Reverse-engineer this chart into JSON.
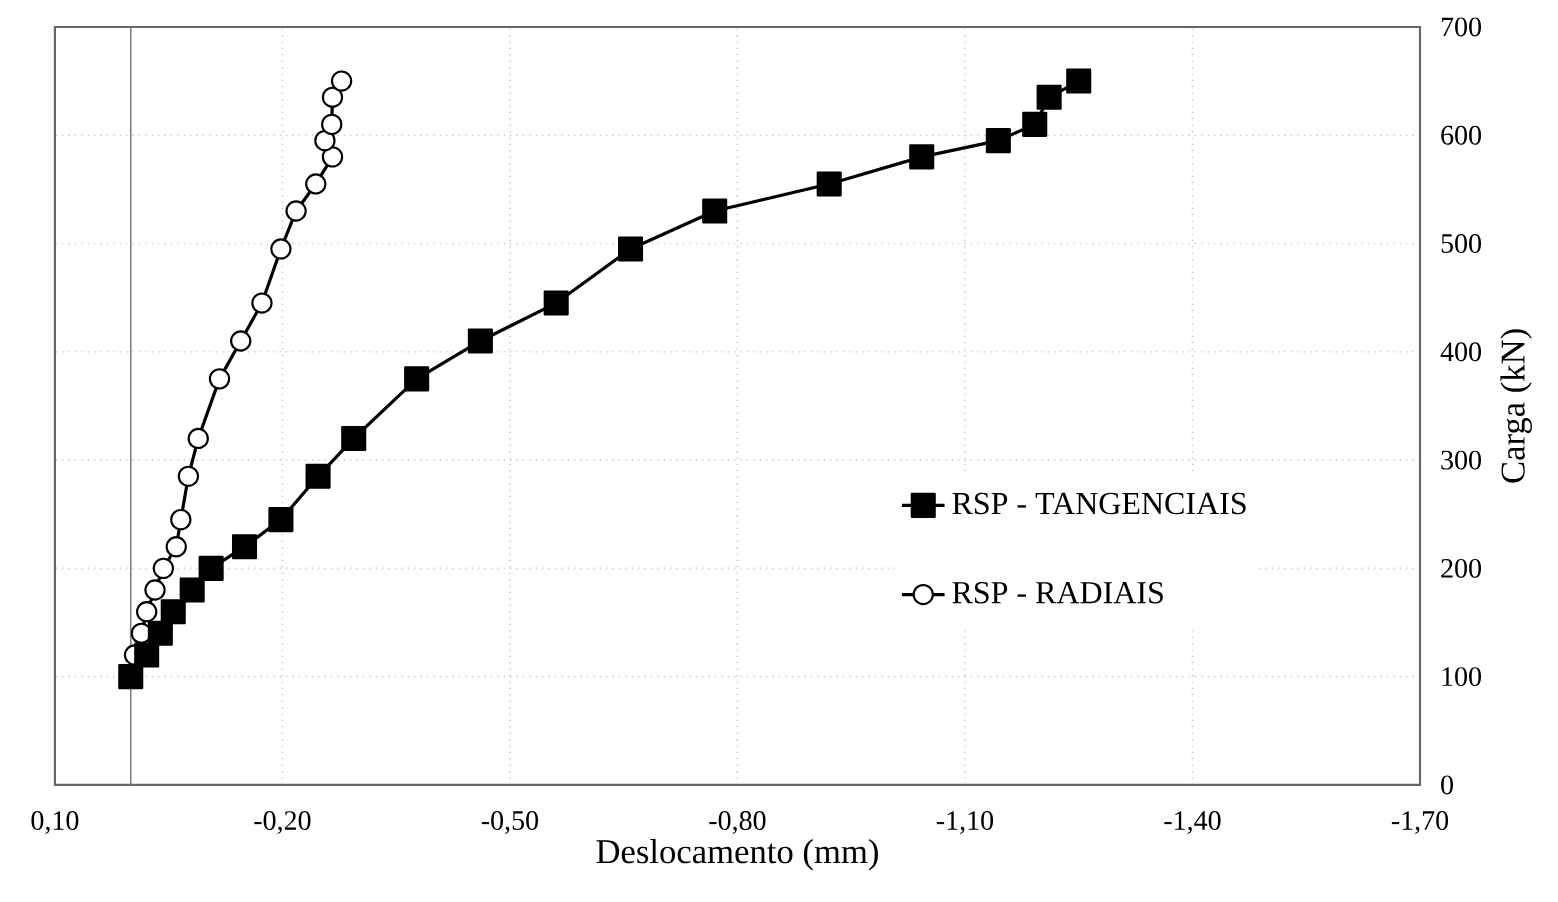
{
  "chart_data": {
    "type": "line",
    "xlabel": "Deslocamento (mm)",
    "ylabel": "Carga (kN)",
    "xlim": [
      0.1,
      -1.7
    ],
    "xticks": [
      {
        "value": 0.1,
        "label": "0,10"
      },
      {
        "value": -0.2,
        "label": "-0,20"
      },
      {
        "value": -0.5,
        "label": "-0,50"
      },
      {
        "value": -0.8,
        "label": "-0,80"
      },
      {
        "value": -1.1,
        "label": "-1,10"
      },
      {
        "value": -1.4,
        "label": "-1,40"
      },
      {
        "value": -1.7,
        "label": "-1,70"
      }
    ],
    "ylim": [
      0,
      700
    ],
    "yticks": [
      0,
      100,
      200,
      300,
      400,
      500,
      600,
      700
    ],
    "grid": true,
    "legend": "right",
    "ref_lines": [
      {
        "axis": "x",
        "value": 0,
        "color": "#808080"
      }
    ],
    "series": [
      {
        "name": "RSP - TANGENCIAIS",
        "color": "#000000",
        "marker": "square",
        "x": [
          0.0,
          -0.021,
          -0.039,
          -0.056,
          -0.081,
          -0.106,
          -0.15,
          -0.198,
          -0.247,
          -0.294,
          -0.377,
          -0.461,
          -0.561,
          -0.659,
          -0.77,
          -0.921,
          -1.043,
          -1.144,
          -1.192,
          -1.211,
          -1.25
        ],
        "values": [
          100,
          120,
          140,
          160,
          180,
          200,
          220,
          245,
          285,
          320,
          375,
          410,
          445,
          495,
          530,
          555,
          580,
          595,
          610,
          635,
          650
        ]
      },
      {
        "name": "RSP - RADIAIS",
        "color": "#000000",
        "marker": "circle",
        "x": [
          0.0,
          -0.005,
          -0.014,
          -0.021,
          -0.032,
          -0.043,
          -0.06,
          -0.066,
          -0.076,
          -0.089,
          -0.117,
          -0.145,
          -0.173,
          -0.198,
          -0.218,
          -0.244,
          -0.266,
          -0.256,
          -0.265,
          -0.266,
          -0.278
        ],
        "values": [
          100,
          120,
          140,
          160,
          180,
          200,
          220,
          245,
          285,
          320,
          375,
          410,
          445,
          495,
          530,
          555,
          580,
          595,
          610,
          635,
          650
        ]
      }
    ]
  }
}
